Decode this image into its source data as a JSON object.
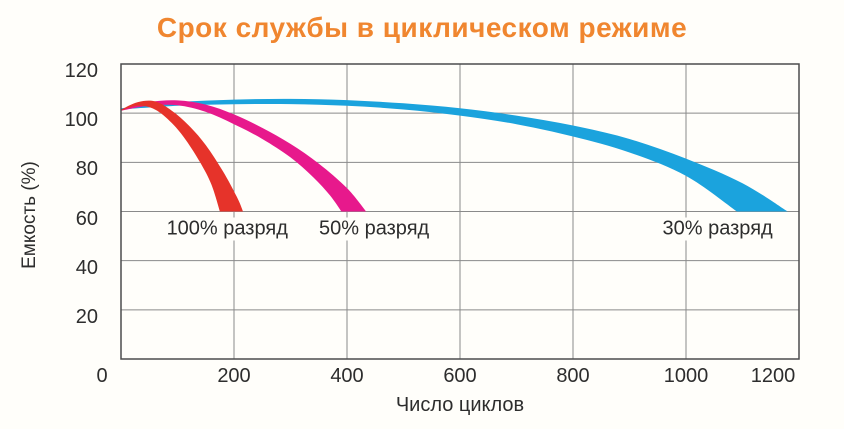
{
  "page": {
    "background": "#fffefa"
  },
  "chart_data": {
    "type": "area",
    "title": "Срок службы в циклическом режиме",
    "title_color": "#f0862f",
    "xlabel": "Число циклов",
    "ylabel": "Емкость (%)",
    "xlim": [
      0,
      1200
    ],
    "ylim": [
      0,
      120
    ],
    "x_ticks": [
      0,
      200,
      400,
      600,
      800,
      1000,
      1200
    ],
    "y_ticks": [
      20,
      40,
      60,
      80,
      100,
      120
    ],
    "grid": true,
    "legend_position": "inside-plot",
    "grid_color": "#8a8a8a",
    "frame_color": "#4c4c4c",
    "text_color": "#2d2d2d",
    "series": [
      {
        "name": "30% разряд",
        "color": "#1ba3dd",
        "upper": [
          [
            0,
            102
          ],
          [
            100,
            104.5
          ],
          [
            200,
            105.5
          ],
          [
            300,
            105.8
          ],
          [
            400,
            105.3
          ],
          [
            500,
            104
          ],
          [
            600,
            102
          ],
          [
            700,
            99
          ],
          [
            800,
            95
          ],
          [
            900,
            89.5
          ],
          [
            1000,
            81.5
          ],
          [
            1100,
            71.5
          ],
          [
            1180,
            60
          ]
        ],
        "lower": [
          [
            0,
            101.5
          ],
          [
            100,
            103
          ],
          [
            200,
            103.6
          ],
          [
            300,
            103.7
          ],
          [
            400,
            103
          ],
          [
            500,
            101.5
          ],
          [
            600,
            99
          ],
          [
            700,
            95.5
          ],
          [
            800,
            90.5
          ],
          [
            900,
            84
          ],
          [
            1000,
            74.5
          ],
          [
            1090,
            60
          ]
        ],
        "label": {
          "text": "30% разряд",
          "x": 1056,
          "y": 53
        }
      },
      {
        "name": "50% разряд",
        "color": "#e7198c",
        "upper": [
          [
            0,
            101.5
          ],
          [
            50,
            104.5
          ],
          [
            100,
            105.2
          ],
          [
            150,
            103.5
          ],
          [
            200,
            99.5
          ],
          [
            250,
            94
          ],
          [
            300,
            87.5
          ],
          [
            350,
            79.5
          ],
          [
            400,
            69.5
          ],
          [
            434,
            60
          ]
        ],
        "lower": [
          [
            0,
            101
          ],
          [
            50,
            103
          ],
          [
            100,
            103.2
          ],
          [
            150,
            100.5
          ],
          [
            200,
            95.5
          ],
          [
            250,
            89.5
          ],
          [
            300,
            82
          ],
          [
            340,
            74
          ],
          [
            370,
            66.5
          ],
          [
            390,
            60
          ]
        ],
        "label": {
          "text": "50% разряд",
          "x": 448,
          "y": 53
        }
      },
      {
        "name": "100% разряд",
        "color": "#e6332a",
        "upper": [
          [
            0,
            101.5
          ],
          [
            30,
            104.5
          ],
          [
            60,
            104.8
          ],
          [
            90,
            101
          ],
          [
            120,
            95
          ],
          [
            150,
            87
          ],
          [
            180,
            76.5
          ],
          [
            205,
            66
          ],
          [
            216,
            60
          ]
        ],
        "lower": [
          [
            0,
            101
          ],
          [
            30,
            103
          ],
          [
            60,
            101.5
          ],
          [
            90,
            96
          ],
          [
            115,
            89
          ],
          [
            140,
            80
          ],
          [
            160,
            71
          ],
          [
            175,
            60
          ]
        ],
        "label": {
          "text": "100% разряд",
          "x": 188,
          "y": 53
        }
      }
    ]
  }
}
